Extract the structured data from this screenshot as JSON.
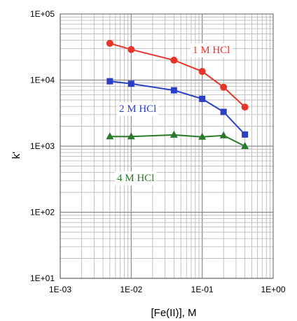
{
  "chart_data": {
    "type": "line",
    "xlabel": "[Fe(II)], M",
    "ylabel": "k'",
    "x_scale": "log",
    "y_scale": "log",
    "xlim": [
      0.001,
      1
    ],
    "ylim": [
      10,
      100000
    ],
    "grid": true,
    "x_ticks": [
      "1E-03",
      "1E-02",
      "1E-01",
      "1E+00"
    ],
    "y_ticks": [
      "1E+01",
      "1E+02",
      "1E+03",
      "1E+04",
      "1E+05"
    ],
    "series": [
      {
        "name": "1 M HCl",
        "color": "#e8352a",
        "marker": "circle",
        "x": [
          0.005,
          0.01,
          0.04,
          0.1,
          0.2,
          0.4
        ],
        "y": [
          36000,
          29000,
          20000,
          13500,
          7800,
          3900
        ]
      },
      {
        "name": "2 M HCl",
        "color": "#2a3fc4",
        "marker": "square",
        "x": [
          0.005,
          0.01,
          0.04,
          0.1,
          0.2,
          0.4
        ],
        "y": [
          9600,
          8800,
          7000,
          5200,
          3300,
          1500
        ]
      },
      {
        "name": "4 M HCl",
        "color": "#2a7a2a",
        "marker": "triangle",
        "x": [
          0.005,
          0.01,
          0.04,
          0.1,
          0.2,
          0.4
        ],
        "y": [
          1400,
          1400,
          1480,
          1380,
          1450,
          1000
        ]
      }
    ]
  }
}
